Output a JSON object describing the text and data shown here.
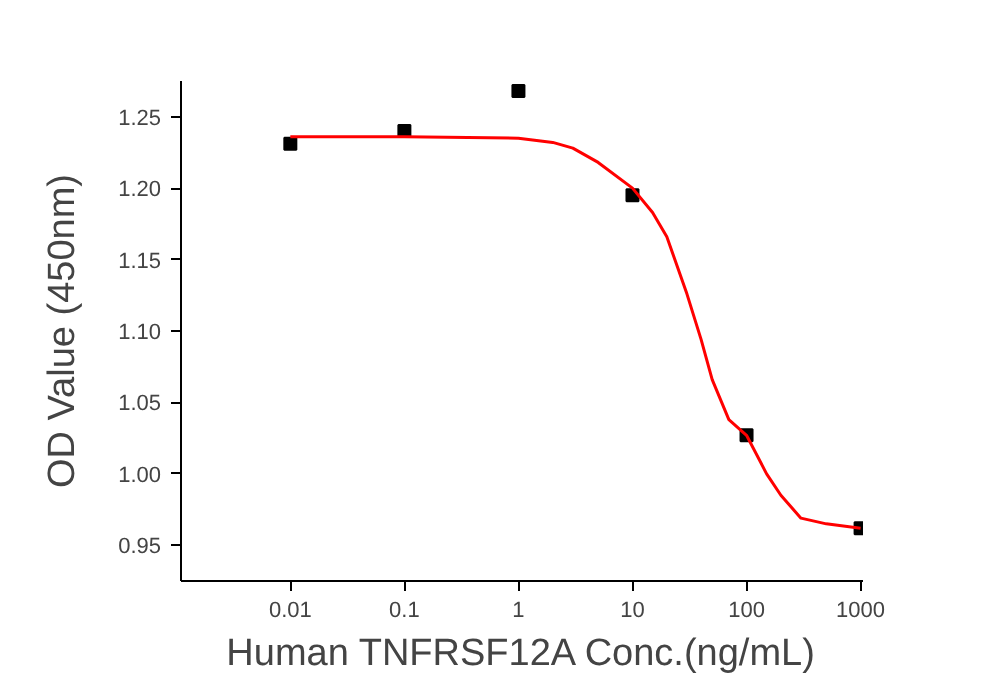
{
  "chart_data": {
    "type": "scatter",
    "xlabel": "Human TNFRSF12A Conc.(ng/mL)",
    "ylabel": "OD Value (450nm)",
    "log": "x",
    "grid": false,
    "xlim": [
      0.0011,
      1050
    ],
    "xticks": [
      0.01,
      0.1,
      1,
      10,
      100,
      1000
    ],
    "ylim": [
      0.925,
      1.275
    ],
    "yticks": [
      0.95,
      {
        "value": 1.0,
        "label": "1.00"
      },
      1.05,
      {
        "value": 1.1,
        "label": "1.10"
      },
      1.15,
      {
        "value": 1.2,
        "label": "1.20"
      },
      1.25
    ],
    "series": [
      {
        "marker": "square",
        "color": "#000000",
        "x": [
          0.01,
          0.1,
          1,
          10,
          100,
          1000
        ],
        "values": [
          1.231,
          1.24,
          1.268,
          1.195,
          1.027,
          0.962
        ]
      },
      {
        "type": "line",
        "marker": "none",
        "line_style": "solid",
        "color": "#ff0000",
        "x": [
          0.01,
          0.1,
          1,
          2,
          3,
          5,
          10,
          15,
          20,
          30,
          40,
          50,
          70,
          100,
          150,
          200,
          300,
          500,
          1000
        ],
        "values": [
          1.236,
          1.236,
          1.235,
          1.232,
          1.228,
          1.218,
          1.2,
          1.183,
          1.166,
          1.126,
          1.094,
          1.066,
          1.038,
          1.027,
          1.0,
          0.985,
          0.969,
          0.965,
          0.962
        ]
      }
    ]
  }
}
